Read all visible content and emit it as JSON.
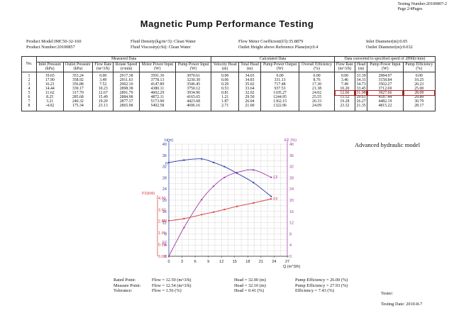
{
  "header": {
    "testing_number": "Testing Number:20100807-2",
    "page": "Page 2/4Pages",
    "title": "Magnetic Pump Performance Testing"
  },
  "info": {
    "product_model": "Product Model:IMC50-32-160",
    "product_number": "Product Number:20100857",
    "fluid_density": "Fluid Density(kg/m^3): Clean Water",
    "fluid_viscosity": "Fluid Viscosity(cSt): Clean Water",
    "flow_meter": "Flow Meter Coefficient(f/l):35.8879",
    "outlet_height": "Outlet Height above Reference Plane(m):0.4",
    "inlet_diameter": "Inlet Diameter(m):0.05",
    "outlet_diameter": "Outlet Diameter(m):0.032"
  },
  "table": {
    "group_measured": "Measured Data",
    "group_calculated": "Calculated Data",
    "group_converted": "Data converted to specified speed of 2890(r/min)",
    "col_no": "No.",
    "headers": [
      {
        "name": "Inlet Pressure",
        "unit": "(kPa)"
      },
      {
        "name": "Outlet Pressure",
        "unit": "(kPa)"
      },
      {
        "name": "Flow Rate",
        "unit": "(m^3/h)"
      },
      {
        "name": "Rotate Speed",
        "unit": "(r/min)"
      },
      {
        "name": "Motor Power Input",
        "unit": "(W)"
      },
      {
        "name": "Pump Power Input",
        "unit": "(W)"
      },
      {
        "name": "Velocity Head",
        "unit": "(m)"
      },
      {
        "name": "Total Head",
        "unit": "(m)"
      },
      {
        "name": "Pump Power Output",
        "unit": "(W)"
      },
      {
        "name": "Overall Efficiency",
        "unit": "(%)"
      },
      {
        "name": "Flow Rate",
        "unit": "(m^3/h)"
      },
      {
        "name": "Head",
        "unit": "(m)"
      },
      {
        "name": "Pump Power Input",
        "unit": "(W)"
      },
      {
        "name": "Pump Efficiency",
        "unit": "(%)"
      }
    ],
    "numbers": [
      "1",
      "2",
      "3",
      "4",
      "5",
      "6",
      "7",
      "8"
    ],
    "columns": [
      [
        "19.65",
        "17.90",
        "16.21",
        "14.44",
        "11.62",
        "8.25",
        "3.21",
        "-4.02"
      ],
      [
        "353.24",
        "358.92",
        "356.88",
        "339.17",
        "317.70",
        "285.68",
        "240.32",
        "175.34"
      ],
      [
        "0.00",
        "3.49",
        "7.52",
        "10.23",
        "12.67",
        "15.49",
        "19.20",
        "23.13"
      ],
      [
        "2917.38",
        "2911.63",
        "2902.10",
        "2898.38",
        "2891.79",
        "2884.98",
        "2877.37",
        "2865.98"
      ],
      [
        "3591.36",
        "3778.13",
        "4147.89",
        "4380.11",
        "4602.29",
        "4872.11",
        "5173.90",
        "5492.58"
      ],
      [
        "3070.61",
        "3230.30",
        "3546.45",
        "3750.12",
        "3934.96",
        "4165.65",
        "4423.68",
        "4696.16"
      ],
      [
        "0.00",
        "0.06",
        "0.29",
        "0.53",
        "0.81",
        "1.21",
        "1.87",
        "2.71"
      ],
      [
        "34.03",
        "34.83",
        "35.02",
        "33.64",
        "32.02",
        "29.50",
        "26.04",
        "21.00"
      ],
      [
        "0.00",
        "331.13",
        "717.48",
        "937.53",
        "1105.27",
        "1244.95",
        "1362.15",
        "1322.96"
      ],
      [
        "0.00",
        "8.76",
        "17.30",
        "21.38",
        "24.02",
        "25.55",
        "26.33",
        "24.09"
      ],
      [
        "0.00",
        "3.46",
        "7.49",
        "10.20",
        "12.66",
        "15.52",
        "19.28",
        "23.32"
      ],
      [
        "33.39",
        "34.31",
        "34.73",
        "33.45",
        "31.98",
        "29.61",
        "26.27",
        "21.35"
      ],
      [
        "2984.97",
        "3158.84",
        "3502.27",
        "3712.69",
        "3927.66",
        "4187.44",
        "4482.19",
        "4815.22"
      ],
      [
        "0.00",
        "10.25",
        "20.23",
        "25.00",
        "28.09",
        "29.89",
        "30.79",
        "28.17"
      ]
    ]
  },
  "chart": {
    "model_label": "Advanced hydraulic model",
    "h_axis_label": "H(m)",
    "ef_axis_label": "EF (%)",
    "p2_axis_label": "P2(kW)",
    "x_axis_label": "Q (m^3/h)",
    "curve_label_h": "H",
    "curve_label_ef_left": "EF",
    "curve_label_ef_right": "EF",
    "curve_label_p2_left": "P2",
    "curve_label_p2_right": "P2"
  },
  "chart_data": {
    "type": "line",
    "x_ticks": [
      "0",
      "3",
      "6",
      "9",
      "12",
      "15",
      "18",
      "21",
      "24",
      "27"
    ],
    "h_ticks": [
      "40",
      "36",
      "32",
      "28",
      "24",
      "20",
      "16",
      "12",
      "8",
      "4",
      "0"
    ],
    "ef_ticks": [
      "40",
      "36",
      "32",
      "28",
      "24",
      "20",
      "16",
      "12",
      "8",
      "4",
      "0"
    ],
    "p2_ticks": [
      "4.90",
      "3.92",
      "2.94",
      "1.96",
      "0.98",
      "0.00"
    ],
    "xlim": [
      0,
      27
    ],
    "hlim": [
      0,
      40
    ],
    "eflim": [
      0,
      40
    ],
    "p2lim": [
      0,
      4.9
    ],
    "series": [
      {
        "name": "H",
        "color": "#2a3aa8",
        "x": [
          0,
          3.46,
          7.49,
          10.2,
          12.66,
          15.52,
          19.28,
          23.32
        ],
        "y": [
          33.39,
          34.31,
          34.73,
          33.45,
          31.98,
          29.61,
          26.27,
          21.35
        ]
      },
      {
        "name": "EF",
        "color": "#a23aa8",
        "x": [
          0,
          3.46,
          7.49,
          10.2,
          12.66,
          15.52,
          19.28,
          23.32
        ],
        "y": [
          0,
          10.25,
          20.23,
          25.0,
          28.09,
          29.89,
          30.79,
          28.17
        ]
      },
      {
        "name": "P2",
        "color": "#d23a3a",
        "x": [
          0,
          3.46,
          7.49,
          10.2,
          12.66,
          15.52,
          19.28,
          23.32
        ],
        "y": [
          2.98,
          3.16,
          3.5,
          3.71,
          3.93,
          4.19,
          4.48,
          4.82
        ]
      }
    ]
  },
  "summary": {
    "rated": "Rated Point:",
    "rated_flow": "Flow = 12.50 (m^3/h)",
    "rated_head": "Head = 32.00 (m)",
    "rated_eff": "Pump Efficiency = 26.00 (%)",
    "measure": "Measure Point:",
    "measure_flow": "Flow = 12.54 (m^3/h)",
    "measure_head": "Head = 32.10 (m)",
    "measure_eff": "Pump Efficiency = 27.93 (%)",
    "tolerance": "Tolerance:",
    "tol_flow": "Flow = 1.56 (%)",
    "tol_head": "Head = 0.41 (%)",
    "tol_eff": "Efficiency = 7.43 (%)",
    "tester": "Tester:",
    "testing_date": "Testing Date: 2010-8-7"
  }
}
